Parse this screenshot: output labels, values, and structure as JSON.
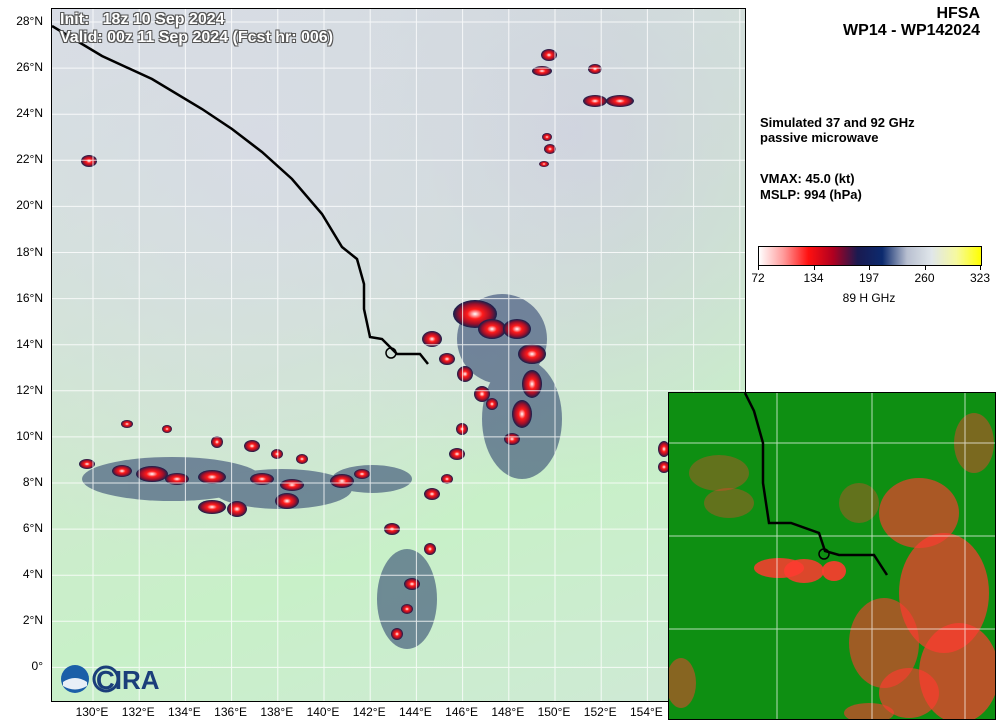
{
  "header": {
    "init": "Init:   18z 10 Sep 2024",
    "valid": "Valid: 00z 11 Sep 2024 (Fcst hr: 006)",
    "model": "HFSA",
    "storm": "WP14 - WP142024"
  },
  "info": {
    "product_line1": "Simulated 37 and 92 GHz",
    "product_line2": "passive microwave",
    "vmax": "VMAX:  45.0 (kt)",
    "mslp": "MSLP:  994 (hPa)"
  },
  "colorbar": {
    "ticks": [
      "72",
      "134",
      "197",
      "260",
      "323"
    ],
    "label": "89 H GHz",
    "colors": [
      "#ffffff",
      "#ff9a9a",
      "#ff1010",
      "#b00020",
      "#1a1a50",
      "#0c2a6e",
      "#b8bfd0",
      "#e0e6ea",
      "#f6f9a0",
      "#ffff00"
    ]
  },
  "axes": {
    "lat_labels": [
      "28°N",
      "26°N",
      "24°N",
      "22°N",
      "20°N",
      "18°N",
      "16°N",
      "14°N",
      "12°N",
      "10°N",
      "8°N",
      "6°N",
      "4°N",
      "2°N",
      "0°"
    ],
    "lon_labels": [
      "130°E",
      "132°E",
      "134°E",
      "136°E",
      "138°E",
      "140°E",
      "142°E",
      "144°E",
      "146°E",
      "148°E",
      "150°E",
      "152°E",
      "154°E"
    ]
  },
  "logo": {
    "text": "CIRA"
  },
  "map_colors": {
    "track": "#000000",
    "grid": "#ffffff",
    "inset_background": "#0e8f12",
    "inset_convection": "#ff3b30"
  }
}
